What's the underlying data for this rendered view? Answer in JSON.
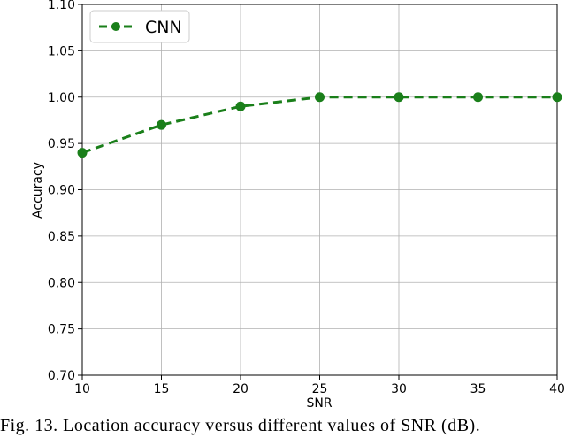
{
  "chart_data": {
    "type": "line",
    "x": [
      10,
      15,
      20,
      25,
      30,
      35,
      40
    ],
    "series": [
      {
        "name": "CNN",
        "values": [
          0.94,
          0.97,
          0.99,
          1.0,
          1.0,
          1.0,
          1.0
        ],
        "color": "#1a7f1a",
        "style": "dashed",
        "marker": "circle"
      }
    ],
    "xlabel": "SNR",
    "ylabel": "Accuracy",
    "xlim": [
      10,
      40
    ],
    "ylim": [
      0.7,
      1.1
    ],
    "xticks": [
      "10",
      "15",
      "20",
      "25",
      "30",
      "35",
      "40"
    ],
    "yticks": [
      "0.70",
      "0.75",
      "0.80",
      "0.85",
      "0.90",
      "0.95",
      "1.00",
      "1.05",
      "1.10"
    ],
    "grid": true,
    "legend": "top-left"
  },
  "caption": "Fig. 13.  Location accuracy versus different values of SNR (dB)."
}
